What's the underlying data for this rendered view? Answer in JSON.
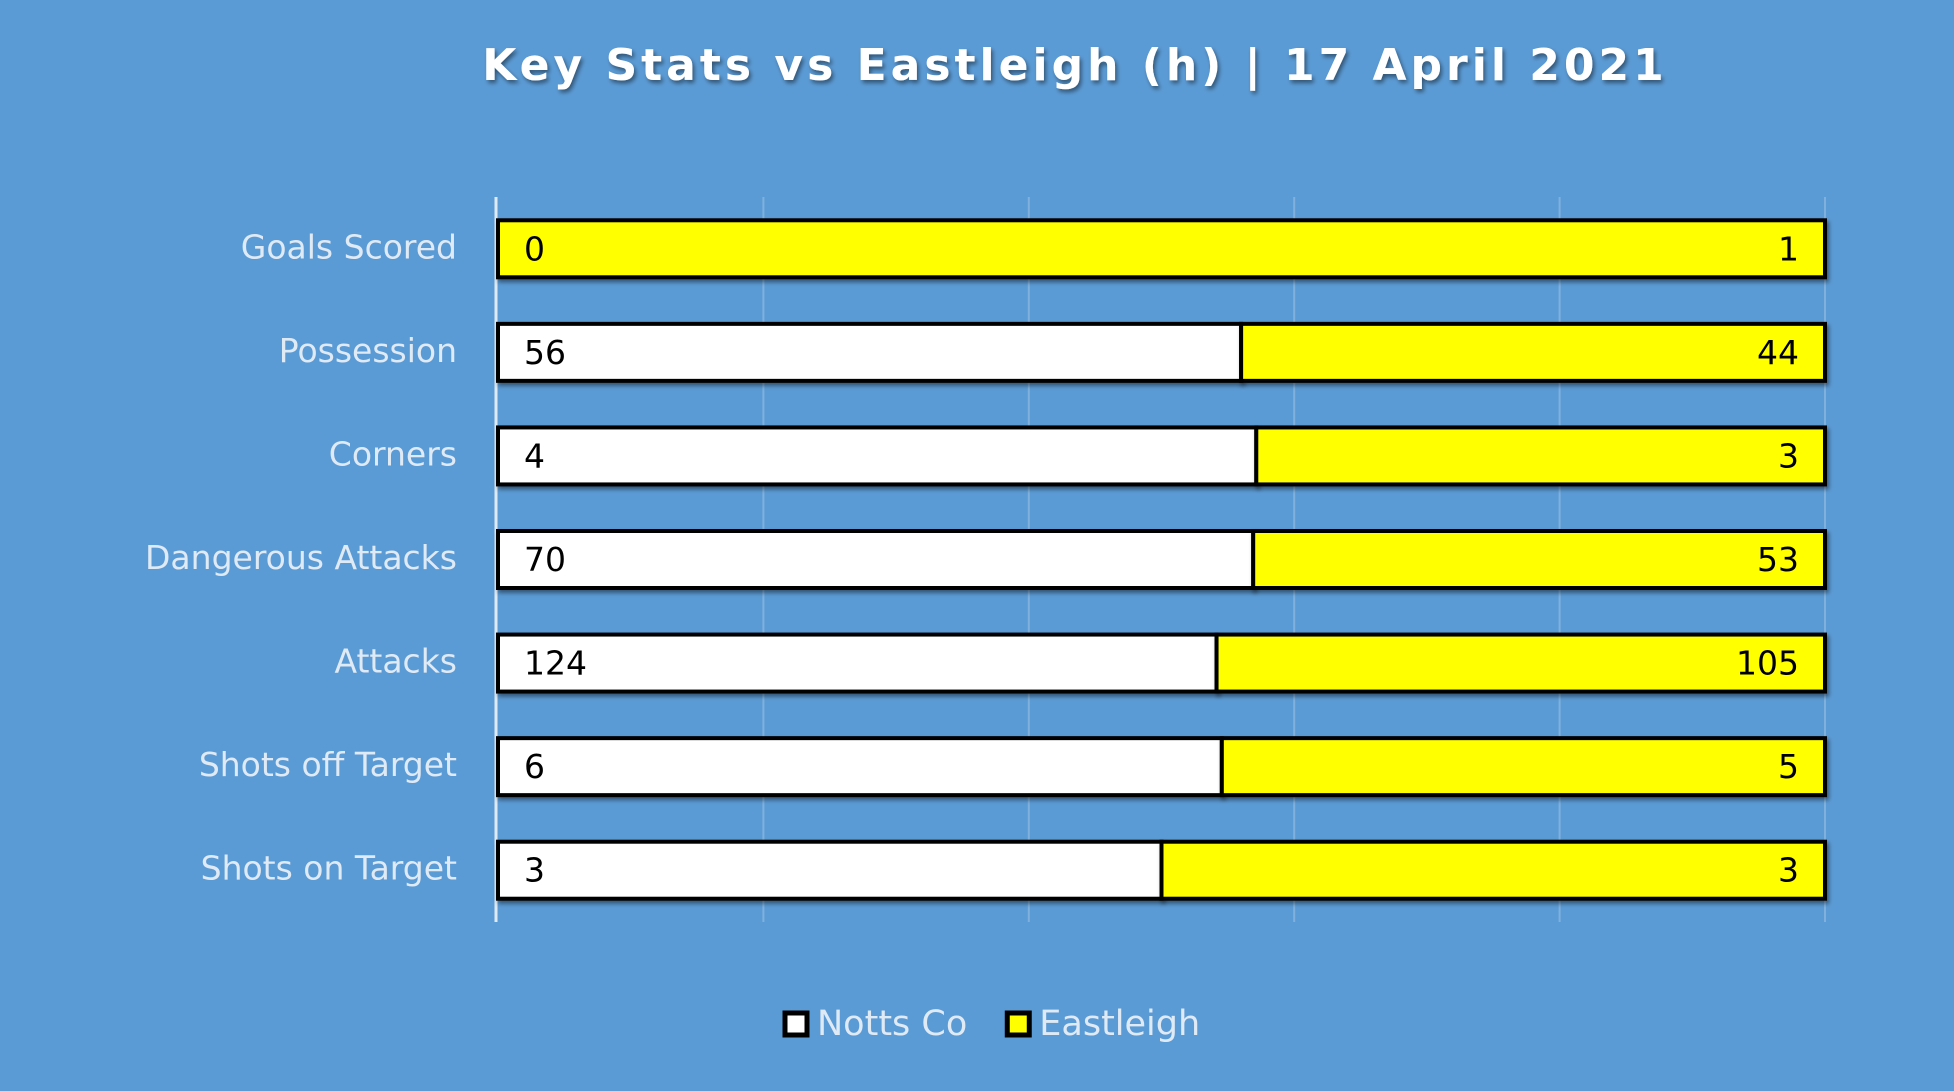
{
  "chart_data": {
    "type": "bar",
    "orientation": "horizontal",
    "stack": "percent",
    "title": "Key Stats vs Eastleigh (h) | 17 April 2021",
    "categories": [
      "Goals Scored",
      "Possession",
      "Corners",
      "Dangerous Attacks",
      "Attacks",
      "Shots off Target",
      "Shots on Target"
    ],
    "series": [
      {
        "name": "Notts Co",
        "color": "#ffffff",
        "values": [
          0,
          56,
          4,
          70,
          124,
          6,
          3
        ]
      },
      {
        "name": "Eastleigh",
        "color": "#ffff00",
        "values": [
          1,
          44,
          3,
          53,
          105,
          5,
          3
        ]
      }
    ],
    "grid": true,
    "legend": "bottom"
  }
}
